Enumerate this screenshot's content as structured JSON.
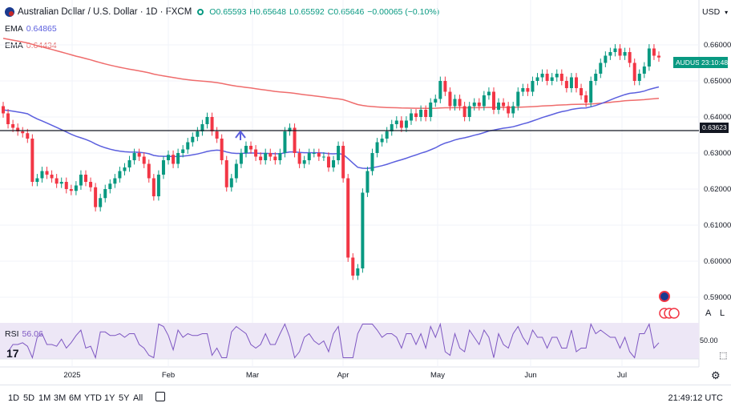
{
  "header": {
    "title": "Australian Dollar / U.S. Dollar · 1D · FXCM",
    "open": "O0.65593",
    "high": "H0.65648",
    "low": "L0.65592",
    "close": "C0.65646",
    "change": "−0.00065 (−0.10%)",
    "currency": "USD"
  },
  "indicators": {
    "ema1_label": "EMA",
    "ema1_value": "0.64865",
    "ema2_label": "EMA",
    "ema2_value": "0.64434",
    "rsi_label": "RSI",
    "rsi_value": "56.06",
    "rsi_level": "50.00"
  },
  "price_axis": {
    "ticks": [
      "0.66000",
      "0.65000",
      "0.64000",
      "0.63000",
      "0.62000",
      "0.61000",
      "0.60000",
      "0.59000"
    ],
    "symbol_tag": "AUDUSD",
    "countdown_tag": "23:10:48",
    "hline_tag": "0.63623"
  },
  "time_axis": {
    "ticks": [
      "2025",
      "Feb",
      "Mar",
      "Apr",
      "May",
      "Jun",
      "Jul"
    ]
  },
  "scale_buttons": {
    "auto": "A",
    "log": "L"
  },
  "bottom": {
    "ranges": [
      "1D",
      "5D",
      "1M",
      "3M",
      "6M",
      "YTD",
      "1Y",
      "5Y",
      "All"
    ],
    "clock": "21:49:12 UTC"
  },
  "colors": {
    "up": "#089981",
    "down": "#f23645",
    "ema_fast": "#5b5fde",
    "ema_slow": "#ef6c6c",
    "rsi_line": "#7e57c2",
    "rsi_band": "#ede7f6"
  },
  "chart_data": {
    "type": "candlestick",
    "symbol": "AUDUSD",
    "interval": "1D",
    "horizontal_line": 0.63623,
    "ylim": [
      0.588,
      0.668
    ],
    "closes": [
      0.641,
      0.638,
      0.637,
      0.636,
      0.6355,
      0.634,
      0.622,
      0.623,
      0.625,
      0.624,
      0.623,
      0.6215,
      0.622,
      0.62,
      0.6195,
      0.621,
      0.624,
      0.622,
      0.6205,
      0.615,
      0.6175,
      0.62,
      0.6215,
      0.623,
      0.625,
      0.626,
      0.628,
      0.63,
      0.629,
      0.627,
      0.623,
      0.618,
      0.624,
      0.628,
      0.6295,
      0.627,
      0.63,
      0.631,
      0.633,
      0.6345,
      0.636,
      0.638,
      0.64,
      0.636,
      0.634,
      0.628,
      0.6205,
      0.623,
      0.627,
      0.63,
      0.632,
      0.631,
      0.629,
      0.628,
      0.63,
      0.629,
      0.628,
      0.63,
      0.636,
      0.637,
      0.63,
      0.627,
      0.628,
      0.63,
      0.63,
      0.629,
      0.629,
      0.626,
      0.628,
      0.632,
      0.623,
      0.601,
      0.596,
      0.598,
      0.619,
      0.625,
      0.63,
      0.633,
      0.634,
      0.636,
      0.638,
      0.639,
      0.637,
      0.639,
      0.641,
      0.64,
      0.642,
      0.64,
      0.644,
      0.645,
      0.65,
      0.647,
      0.643,
      0.645,
      0.643,
      0.64,
      0.643,
      0.644,
      0.643,
      0.646,
      0.647,
      0.642,
      0.644,
      0.643,
      0.641,
      0.643,
      0.647,
      0.648,
      0.647,
      0.65,
      0.651,
      0.652,
      0.65,
      0.651,
      0.652,
      0.65,
      0.648,
      0.651,
      0.648,
      0.646,
      0.644,
      0.65,
      0.652,
      0.655,
      0.657,
      0.658,
      0.659,
      0.657,
      0.658,
      0.655,
      0.65,
      0.652,
      0.654,
      0.659,
      0.657,
      0.6565
    ]
  }
}
